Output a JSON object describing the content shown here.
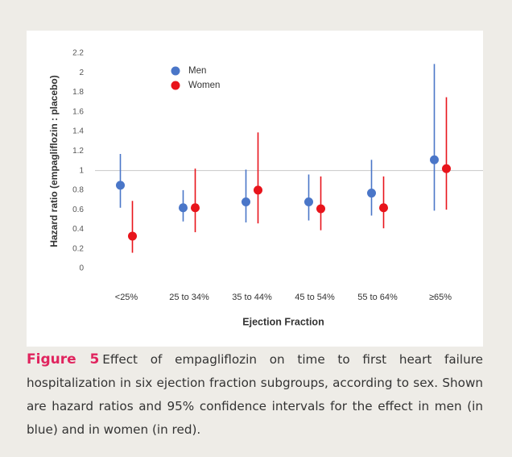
{
  "chart_data": {
    "type": "dot-errorbar",
    "ylabel": "Hazard ratio (empagliflozin : placebo)",
    "xlabel": "Ejection Fraction",
    "categories": [
      "<25%",
      "25 to 34%",
      "35 to 44%",
      "45 to 54%",
      "55 to 64%",
      "≥65%"
    ],
    "series": [
      {
        "name": "Men",
        "color": "#4a76c8",
        "values": [
          0.85,
          0.62,
          0.68,
          0.68,
          0.77,
          1.11
        ],
        "lower": [
          0.62,
          0.48,
          0.47,
          0.49,
          0.54,
          0.59
        ],
        "upper": [
          1.17,
          0.8,
          1.01,
          0.96,
          1.11,
          2.09
        ]
      },
      {
        "name": "Women",
        "color": "#e8141b",
        "values": [
          0.33,
          0.62,
          0.8,
          0.61,
          0.62,
          1.02
        ],
        "lower": [
          0.16,
          0.37,
          0.46,
          0.39,
          0.41,
          0.6
        ],
        "upper": [
          0.69,
          1.02,
          1.39,
          0.94,
          0.94,
          1.75
        ]
      }
    ],
    "ylim": [
      0,
      2.2
    ],
    "yticks": [
      0,
      0.2,
      0.4,
      0.6,
      0.8,
      1,
      1.2,
      1.4,
      1.6,
      1.8,
      2,
      2.2
    ],
    "reference_line": 1,
    "legend": "upper left"
  },
  "caption": {
    "label": "Figure 5",
    "text": "Effect of empagliflozin on time to first heart failure hospitalization in six ejection fraction subgroups, according to sex. Shown are hazard ratios and 95% confidence intervals for the effect in men (in blue) and in women (in red)."
  }
}
